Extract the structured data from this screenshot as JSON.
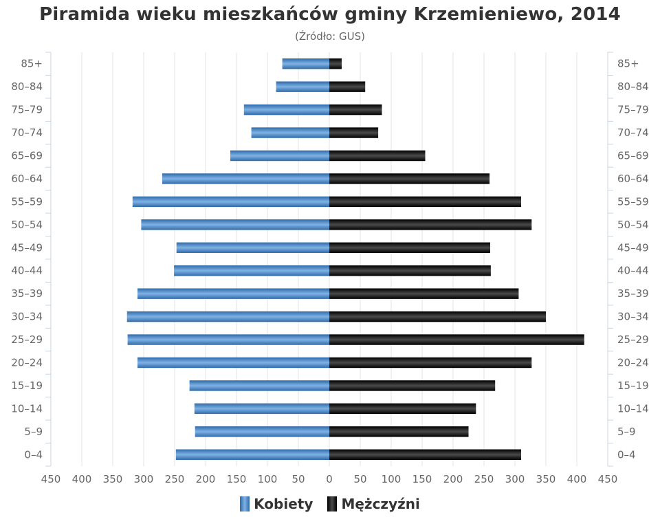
{
  "chart_data": {
    "type": "bar",
    "title": "Piramida wieku mieszkańców gminy Krzemieniewo, 2014",
    "subtitle": "(Źródło: GUS)",
    "categories": [
      "85+",
      "80–84",
      "75–79",
      "70–74",
      "65–69",
      "60–64",
      "55–59",
      "50–54",
      "45–49",
      "40–44",
      "35–39",
      "30–34",
      "25–29",
      "20–24",
      "15–19",
      "10–14",
      "5–9",
      "0–4"
    ],
    "series": [
      {
        "name": "Kobiety",
        "color": "#4a86c8",
        "values": [
          76,
          86,
          138,
          126,
          160,
          270,
          318,
          304,
          247,
          251,
          310,
          327,
          326,
          310,
          226,
          218,
          217,
          248
        ]
      },
      {
        "name": "Mężczyźni",
        "color": "#1f1f1f",
        "values": [
          20,
          58,
          85,
          79,
          155,
          259,
          310,
          327,
          260,
          261,
          306,
          350,
          412,
          327,
          268,
          237,
          225,
          310
        ]
      }
    ],
    "xlim": [
      -450,
      450
    ],
    "xticks": [
      "450",
      "400",
      "350",
      "300",
      "250",
      "200",
      "150",
      "100",
      "50",
      "0",
      "50",
      "100",
      "150",
      "200",
      "250",
      "300",
      "350",
      "400",
      "450"
    ],
    "grid": true,
    "legend": "bottom"
  }
}
